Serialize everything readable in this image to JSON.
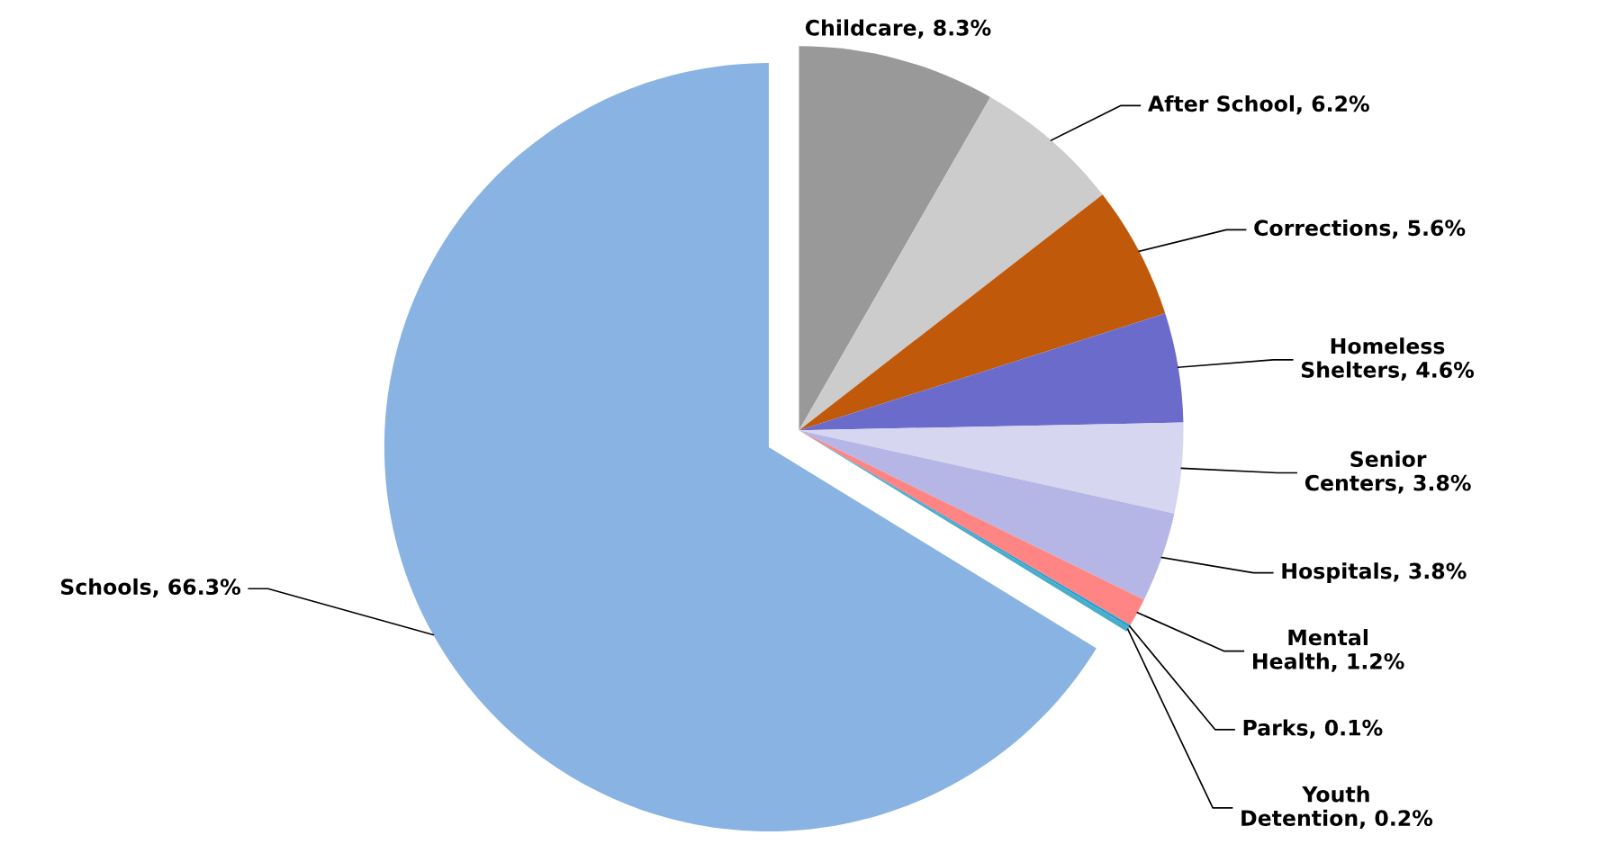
{
  "chart_data": {
    "type": "pie",
    "categories": [
      "Childcare",
      "After School",
      "Corrections",
      "Homeless Shelters",
      "Senior Centers",
      "Hospitals",
      "Mental Health",
      "Parks",
      "Youth Detention",
      "Schools"
    ],
    "values": [
      8.3,
      6.2,
      5.6,
      4.6,
      3.8,
      3.8,
      1.2,
      0.1,
      0.2,
      66.3
    ],
    "colors": [
      "#999999",
      "#cccccc",
      "#c0590a",
      "#6b6bcb",
      "#d6d6f0",
      "#b6b6e6",
      "#ff8585",
      "#1fa0d8",
      "#4bacc6",
      "#89b3e2"
    ],
    "value_labels": [
      "8.3%",
      "6.2%",
      "5.6%",
      "4.6%",
      "3.8%",
      "3.8%",
      "1.2%",
      "0.1%",
      "0.2%",
      "66.3%"
    ]
  }
}
